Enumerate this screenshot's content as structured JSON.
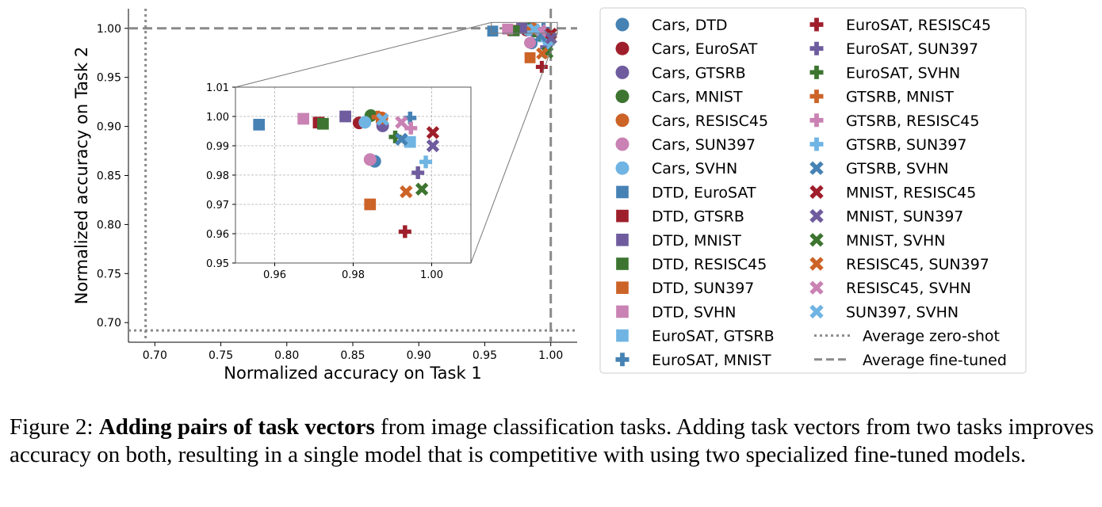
{
  "chart_data": {
    "type": "scatter",
    "xlabel": "Normalized accuracy on Task 1",
    "ylabel": "Normalized accuracy on Task 2",
    "xlim": [
      0.68,
      1.02
    ],
    "ylim": [
      0.68,
      1.02
    ],
    "xticks": [
      "0.70",
      "0.75",
      "0.80",
      "0.85",
      "0.90",
      "0.95",
      "1.00"
    ],
    "yticks": [
      "0.70",
      "0.75",
      "0.80",
      "0.85",
      "0.90",
      "0.95",
      "1.00"
    ],
    "reference_lines": [
      {
        "name": "Average zero-shot",
        "style": "dotted",
        "x": 0.693,
        "y": 0.692
      },
      {
        "name": "Average fine-tuned",
        "style": "dashed",
        "x": 1.0,
        "y": 1.0
      }
    ],
    "inset": {
      "xlim": [
        0.95,
        1.01
      ],
      "ylim": [
        0.95,
        1.01
      ],
      "xticks": [
        "0.96",
        "0.98",
        "1.00"
      ],
      "yticks": [
        "0.95",
        "0.96",
        "0.97",
        "0.98",
        "0.99",
        "1.00",
        "1.01"
      ],
      "grid": true,
      "zoom_box": [
        0.955,
        0.995,
        1.005,
        1.006
      ]
    },
    "legend_placement": "right, outside, two columns",
    "series": [
      {
        "name": "Cars, DTD",
        "marker": "circle",
        "color": "#4682b4",
        "x": 0.9855,
        "y": 0.9847
      },
      {
        "name": "Cars, EuroSAT",
        "marker": "circle",
        "color": "#9e1f2b",
        "x": 0.9815,
        "y": 0.9978
      },
      {
        "name": "Cars, GTSRB",
        "marker": "circle",
        "color": "#6f5c9e",
        "x": 0.9875,
        "y": 0.9968
      },
      {
        "name": "Cars, MNIST",
        "marker": "circle",
        "color": "#3d7530",
        "x": 0.9845,
        "y": 1.0003
      },
      {
        "name": "Cars, RESISC45",
        "marker": "circle",
        "color": "#cc6327",
        "x": 0.9873,
        "y": 0.9995
      },
      {
        "name": "Cars, SUN397",
        "marker": "circle",
        "color": "#c982b3",
        "x": 0.9843,
        "y": 0.9853
      },
      {
        "name": "Cars, SVHN",
        "marker": "circle",
        "color": "#6fb4e3",
        "x": 0.983,
        "y": 0.998
      },
      {
        "name": "DTD, EuroSAT",
        "marker": "square",
        "color": "#4682b4",
        "x": 0.956,
        "y": 0.9972
      },
      {
        "name": "DTD, GTSRB",
        "marker": "square",
        "color": "#9e1f2b",
        "x": 0.9712,
        "y": 0.9979
      },
      {
        "name": "DTD, MNIST",
        "marker": "square",
        "color": "#6f5c9e",
        "x": 0.978,
        "y": 1.0
      },
      {
        "name": "DTD, RESISC45",
        "marker": "square",
        "color": "#3d7530",
        "x": 0.9723,
        "y": 0.9975
      },
      {
        "name": "DTD, SUN397",
        "marker": "square",
        "color": "#cc6327",
        "x": 0.9843,
        "y": 0.97
      },
      {
        "name": "DTD, SVHN",
        "marker": "square",
        "color": "#c982b3",
        "x": 0.9673,
        "y": 0.9992
      },
      {
        "name": "EuroSAT, GTSRB",
        "marker": "square",
        "color": "#6fb4e3",
        "x": 0.9945,
        "y": 0.9913
      },
      {
        "name": "EuroSAT, MNIST",
        "marker": "plus",
        "color": "#4682b4",
        "x": 0.9945,
        "y": 0.9995
      },
      {
        "name": "EuroSAT, RESISC45",
        "marker": "plus",
        "color": "#9e1f2b",
        "x": 0.9932,
        "y": 0.9607
      },
      {
        "name": "EuroSAT, SUN397",
        "marker": "plus",
        "color": "#6f5c9e",
        "x": 0.9965,
        "y": 0.9808
      },
      {
        "name": "EuroSAT, SVHN",
        "marker": "plus",
        "color": "#3d7530",
        "x": 0.9907,
        "y": 0.993
      },
      {
        "name": "GTSRB, MNIST",
        "marker": "plus",
        "color": "#cc6327",
        "x": 0.9863,
        "y": 0.9998
      },
      {
        "name": "GTSRB, RESISC45",
        "marker": "plus",
        "color": "#c982b3",
        "x": 0.9947,
        "y": 0.996
      },
      {
        "name": "GTSRB, SUN397",
        "marker": "plus",
        "color": "#6fb4e3",
        "x": 0.9985,
        "y": 0.9845
      },
      {
        "name": "GTSRB, SVHN",
        "marker": "x",
        "color": "#4682b4",
        "x": 0.9923,
        "y": 0.9922
      },
      {
        "name": "MNIST, RESISC45",
        "marker": "x",
        "color": "#9e1f2b",
        "x": 1.0003,
        "y": 0.9945
      },
      {
        "name": "MNIST, SUN397",
        "marker": "x",
        "color": "#6f5c9e",
        "x": 1.0003,
        "y": 0.99
      },
      {
        "name": "MNIST, SVHN",
        "marker": "x",
        "color": "#3d7530",
        "x": 0.9975,
        "y": 0.9752
      },
      {
        "name": "RESISC45, SUN397",
        "marker": "x",
        "color": "#cc6327",
        "x": 0.9935,
        "y": 0.9743
      },
      {
        "name": "RESISC45, SVHN",
        "marker": "x",
        "color": "#c982b3",
        "x": 0.9923,
        "y": 0.998
      },
      {
        "name": "SUN397, SVHN",
        "marker": "x",
        "color": "#6fb4e3",
        "x": 0.9875,
        "y": 0.999
      }
    ]
  },
  "caption": {
    "label": "Figure 2: ",
    "bold": "Adding pairs of task vectors",
    "text": " from image classification tasks. Adding task vectors from two tasks improves accuracy on both, resulting in a single model that is competitive with using two specialized fine-tuned models."
  }
}
